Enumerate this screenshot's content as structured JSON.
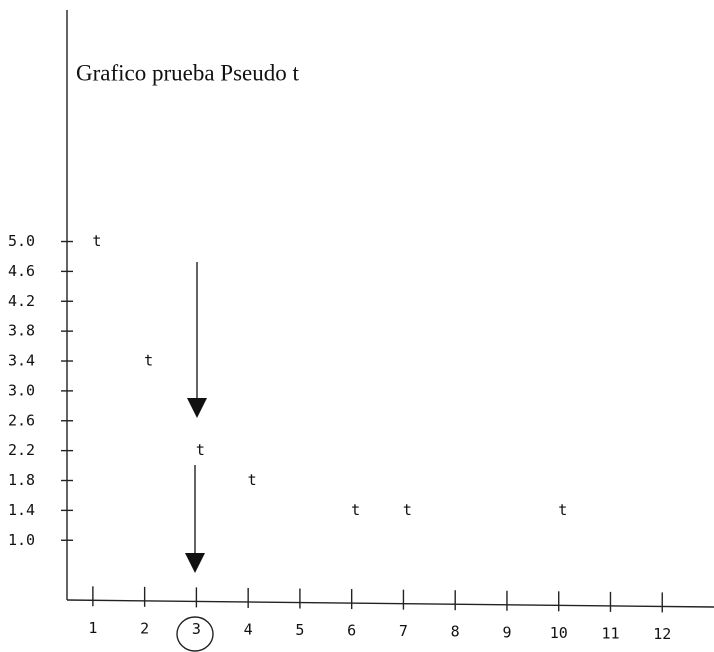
{
  "chart_data": {
    "type": "scatter",
    "title": "Grafico prueba Pseudo t",
    "marker": "t",
    "x": [
      1,
      2,
      3,
      4,
      6,
      7,
      10
    ],
    "values": [
      5.0,
      3.4,
      2.2,
      1.8,
      1.4,
      1.4,
      1.4
    ],
    "xlim": [
      0.5,
      13
    ],
    "xticks": [
      1,
      2,
      3,
      4,
      5,
      6,
      7,
      8,
      9,
      10,
      11,
      12
    ],
    "ylim": [
      0.2,
      8.1
    ],
    "yticks": [
      {
        "value": 5,
        "label": "5.0"
      },
      4.6,
      4.2,
      3.8,
      3.4,
      {
        "value": 3,
        "label": "3.0"
      },
      2.6,
      2.2,
      1.8,
      1.4,
      {
        "value": 1,
        "label": "1.0"
      }
    ],
    "color": "#111"
  }
}
